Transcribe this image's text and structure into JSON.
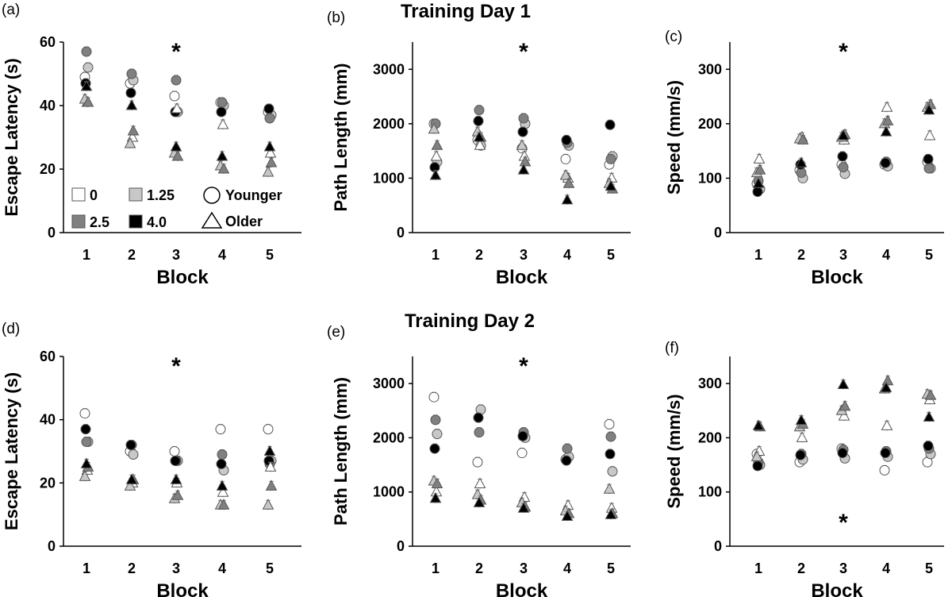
{
  "figure": {
    "day1_title": "Training Day 1",
    "day2_title": "Training Day 2",
    "legend": {
      "doses": [
        {
          "label": "0",
          "color": "#ffffff"
        },
        {
          "label": "1.25",
          "color": "#c8c8c8"
        },
        {
          "label": "2.5",
          "color": "#808080"
        },
        {
          "label": "4.0",
          "color": "#000000"
        }
      ],
      "ages": [
        {
          "label": "Younger",
          "shape": "circle"
        },
        {
          "label": "Older",
          "shape": "triangle"
        }
      ]
    }
  },
  "chart_data": [
    {
      "panel": "(a)",
      "type": "scatter",
      "xlabel": "Block",
      "ylabel": "Escape Latency (s)",
      "categories": [
        "1",
        "2",
        "3",
        "4",
        "5"
      ],
      "ylim": [
        0,
        60
      ],
      "yticks": [
        0,
        20,
        40,
        60
      ],
      "significance": [
        {
          "block": "3",
          "label": "*",
          "position": "top"
        }
      ],
      "series": [
        {
          "name": "0 Younger",
          "color": "#ffffff",
          "shape": "circle",
          "values": [
            49,
            47,
            43,
            41,
            38
          ]
        },
        {
          "name": "1.25 Younger",
          "color": "#c8c8c8",
          "shape": "circle",
          "values": [
            52,
            48,
            38,
            40,
            37
          ]
        },
        {
          "name": "2.5 Younger",
          "color": "#808080",
          "shape": "circle",
          "values": [
            57,
            50,
            48,
            41,
            36
          ]
        },
        {
          "name": "4.0 Younger",
          "color": "#000000",
          "shape": "circle",
          "values": [
            47,
            44,
            38,
            38,
            39
          ]
        },
        {
          "name": "0 Older",
          "color": "#ffffff",
          "shape": "triangle",
          "values": [
            41,
            30,
            39,
            34,
            25
          ]
        },
        {
          "name": "1.25 Older",
          "color": "#c8c8c8",
          "shape": "triangle",
          "values": [
            42,
            28,
            25,
            21,
            19
          ]
        },
        {
          "name": "2.5 Older",
          "color": "#808080",
          "shape": "triangle",
          "values": [
            41,
            32,
            24,
            20,
            22
          ]
        },
        {
          "name": "4.0 Older",
          "color": "#000000",
          "shape": "triangle",
          "values": [
            46,
            40,
            27,
            24,
            27
          ]
        }
      ]
    },
    {
      "panel": "(b)",
      "type": "scatter",
      "xlabel": "Block",
      "ylabel": "Path Length (mm)",
      "categories": [
        "1",
        "2",
        "3",
        "4",
        "5"
      ],
      "ylim": [
        0,
        3500
      ],
      "yticks": [
        0,
        1000,
        2000,
        3000
      ],
      "significance": [
        {
          "block": "3",
          "label": "*",
          "position": "top"
        }
      ],
      "series": [
        {
          "name": "0 Younger",
          "color": "#ffffff",
          "shape": "circle",
          "values": [
            2000,
            1700,
            1550,
            1350,
            1250
          ]
        },
        {
          "name": "1.25 Younger",
          "color": "#c8c8c8",
          "shape": "circle",
          "values": [
            1300,
            1600,
            2000,
            1600,
            1400
          ]
        },
        {
          "name": "2.5 Younger",
          "color": "#808080",
          "shape": "circle",
          "values": [
            2000,
            2250,
            2100,
            1650,
            1350
          ]
        },
        {
          "name": "4.0 Younger",
          "color": "#000000",
          "shape": "circle",
          "values": [
            1200,
            2050,
            1850,
            1700,
            1980
          ]
        },
        {
          "name": "0 Older",
          "color": "#ffffff",
          "shape": "triangle",
          "values": [
            1400,
            1600,
            1400,
            1000,
            1000
          ]
        },
        {
          "name": "1.25 Older",
          "color": "#c8c8c8",
          "shape": "triangle",
          "values": [
            1900,
            1850,
            1600,
            1050,
            900
          ]
        },
        {
          "name": "2.5 Older",
          "color": "#808080",
          "shape": "triangle",
          "values": [
            1600,
            1750,
            1300,
            900,
            800
          ]
        },
        {
          "name": "4.0 Older",
          "color": "#000000",
          "shape": "triangle",
          "values": [
            1050,
            1750,
            1150,
            600,
            850
          ]
        }
      ]
    },
    {
      "panel": "(c)",
      "type": "scatter",
      "xlabel": "Block",
      "ylabel": "Speed (mm/s)",
      "categories": [
        "1",
        "2",
        "3",
        "4",
        "5"
      ],
      "ylim": [
        0,
        350
      ],
      "yticks": [
        0,
        100,
        200,
        300
      ],
      "significance": [
        {
          "block": "3",
          "label": "*",
          "position": "top"
        }
      ],
      "series": [
        {
          "name": "0 Younger",
          "color": "#ffffff",
          "shape": "circle",
          "values": [
            90,
            115,
            125,
            125,
            130
          ]
        },
        {
          "name": "1.25 Younger",
          "color": "#c8c8c8",
          "shape": "circle",
          "values": [
            80,
            100,
            108,
            122,
            118
          ]
        },
        {
          "name": "2.5 Younger",
          "color": "#808080",
          "shape": "circle",
          "values": [
            95,
            110,
            120,
            130,
            118
          ]
        },
        {
          "name": "4.0 Younger",
          "color": "#000000",
          "shape": "circle",
          "values": [
            75,
            125,
            140,
            128,
            135
          ]
        },
        {
          "name": "0 Older",
          "color": "#ffffff",
          "shape": "triangle",
          "values": [
            135,
            175,
            170,
            230,
            178
          ]
        },
        {
          "name": "1.25 Older",
          "color": "#c8c8c8",
          "shape": "triangle",
          "values": [
            110,
            172,
            175,
            200,
            230
          ]
        },
        {
          "name": "2.5 Older",
          "color": "#808080",
          "shape": "triangle",
          "values": [
            115,
            170,
            180,
            205,
            235
          ]
        },
        {
          "name": "4.0 Older",
          "color": "#000000",
          "shape": "triangle",
          "values": [
            90,
            128,
            178,
            185,
            225
          ]
        }
      ]
    },
    {
      "panel": "(d)",
      "type": "scatter",
      "xlabel": "Block",
      "ylabel": "Escape Latency (s)",
      "categories": [
        "1",
        "2",
        "3",
        "4",
        "5"
      ],
      "ylim": [
        0,
        60
      ],
      "yticks": [
        0,
        20,
        40,
        60
      ],
      "significance": [
        {
          "block": "3",
          "label": "*",
          "position": "top"
        }
      ],
      "series": [
        {
          "name": "0 Younger",
          "color": "#ffffff",
          "shape": "circle",
          "values": [
            42,
            30,
            30,
            37,
            37
          ]
        },
        {
          "name": "1.25 Younger",
          "color": "#c8c8c8",
          "shape": "circle",
          "values": [
            33,
            29,
            27,
            24,
            27
          ]
        },
        {
          "name": "2.5 Younger",
          "color": "#808080",
          "shape": "circle",
          "values": [
            33,
            32,
            27,
            29,
            26
          ]
        },
        {
          "name": "4.0 Younger",
          "color": "#000000",
          "shape": "circle",
          "values": [
            37,
            32,
            27,
            26,
            27
          ]
        },
        {
          "name": "0 Older",
          "color": "#ffffff",
          "shape": "triangle",
          "values": [
            24,
            20,
            20,
            17,
            25
          ]
        },
        {
          "name": "1.25 Older",
          "color": "#c8c8c8",
          "shape": "triangle",
          "values": [
            22,
            19,
            15,
            13,
            13
          ]
        },
        {
          "name": "2.5 Older",
          "color": "#808080",
          "shape": "triangle",
          "values": [
            25,
            21,
            16,
            13,
            19
          ]
        },
        {
          "name": "4.0 Older",
          "color": "#000000",
          "shape": "triangle",
          "values": [
            26,
            21,
            21,
            19,
            30
          ]
        }
      ]
    },
    {
      "panel": "(e)",
      "type": "scatter",
      "xlabel": "Block",
      "ylabel": "Path Length (mm)",
      "categories": [
        "1",
        "2",
        "3",
        "4",
        "5"
      ],
      "ylim": [
        0,
        3500
      ],
      "yticks": [
        0,
        1000,
        2000,
        3000
      ],
      "significance": [
        {
          "block": "3",
          "label": "*",
          "position": "top"
        }
      ],
      "series": [
        {
          "name": "0 Younger",
          "color": "#ffffff",
          "shape": "circle",
          "values": [
            2750,
            1550,
            1720,
            1600,
            2250
          ]
        },
        {
          "name": "1.25 Younger",
          "color": "#c8c8c8",
          "shape": "circle",
          "values": [
            2070,
            2520,
            2000,
            1650,
            1380
          ]
        },
        {
          "name": "2.5 Younger",
          "color": "#808080",
          "shape": "circle",
          "values": [
            2330,
            2100,
            2100,
            1800,
            2020
          ]
        },
        {
          "name": "4.0 Younger",
          "color": "#000000",
          "shape": "circle",
          "values": [
            1800,
            2370,
            2030,
            1580,
            1700
          ]
        },
        {
          "name": "0 Older",
          "color": "#ffffff",
          "shape": "triangle",
          "values": [
            1000,
            1150,
            900,
            750,
            700
          ]
        },
        {
          "name": "1.25 Older",
          "color": "#c8c8c8",
          "shape": "triangle",
          "values": [
            1200,
            950,
            800,
            650,
            1050
          ]
        },
        {
          "name": "2.5 Older",
          "color": "#808080",
          "shape": "triangle",
          "values": [
            1150,
            850,
            720,
            600,
            600
          ]
        },
        {
          "name": "4.0 Older",
          "color": "#000000",
          "shape": "triangle",
          "values": [
            880,
            800,
            700,
            550,
            580
          ]
        }
      ]
    },
    {
      "panel": "(f)",
      "type": "scatter",
      "xlabel": "Block",
      "ylabel": "Speed (mm/s)",
      "categories": [
        "1",
        "2",
        "3",
        "4",
        "5"
      ],
      "ylim": [
        0,
        350
      ],
      "yticks": [
        0,
        100,
        200,
        300
      ],
      "significance": [
        {
          "block": "3",
          "label": "*",
          "position": "bottom"
        }
      ],
      "series": [
        {
          "name": "0 Younger",
          "color": "#ffffff",
          "shape": "circle",
          "values": [
            170,
            155,
            180,
            140,
            155
          ]
        },
        {
          "name": "1.25 Younger",
          "color": "#c8c8c8",
          "shape": "circle",
          "values": [
            150,
            160,
            162,
            165,
            170
          ]
        },
        {
          "name": "2.5 Younger",
          "color": "#808080",
          "shape": "circle",
          "values": [
            155,
            170,
            178,
            175,
            180
          ]
        },
        {
          "name": "4.0 Younger",
          "color": "#000000",
          "shape": "circle",
          "values": [
            148,
            168,
            172,
            172,
            185
          ]
        },
        {
          "name": "0 Older",
          "color": "#ffffff",
          "shape": "triangle",
          "values": [
            175,
            200,
            240,
            222,
            270
          ]
        },
        {
          "name": "1.25 Older",
          "color": "#c8c8c8",
          "shape": "triangle",
          "values": [
            165,
            220,
            250,
            290,
            280
          ]
        },
        {
          "name": "2.5 Older",
          "color": "#808080",
          "shape": "triangle",
          "values": [
            220,
            225,
            258,
            305,
            278
          ]
        },
        {
          "name": "4.0 Older",
          "color": "#000000",
          "shape": "triangle",
          "values": [
            222,
            232,
            298,
            292,
            238
          ]
        }
      ]
    }
  ]
}
